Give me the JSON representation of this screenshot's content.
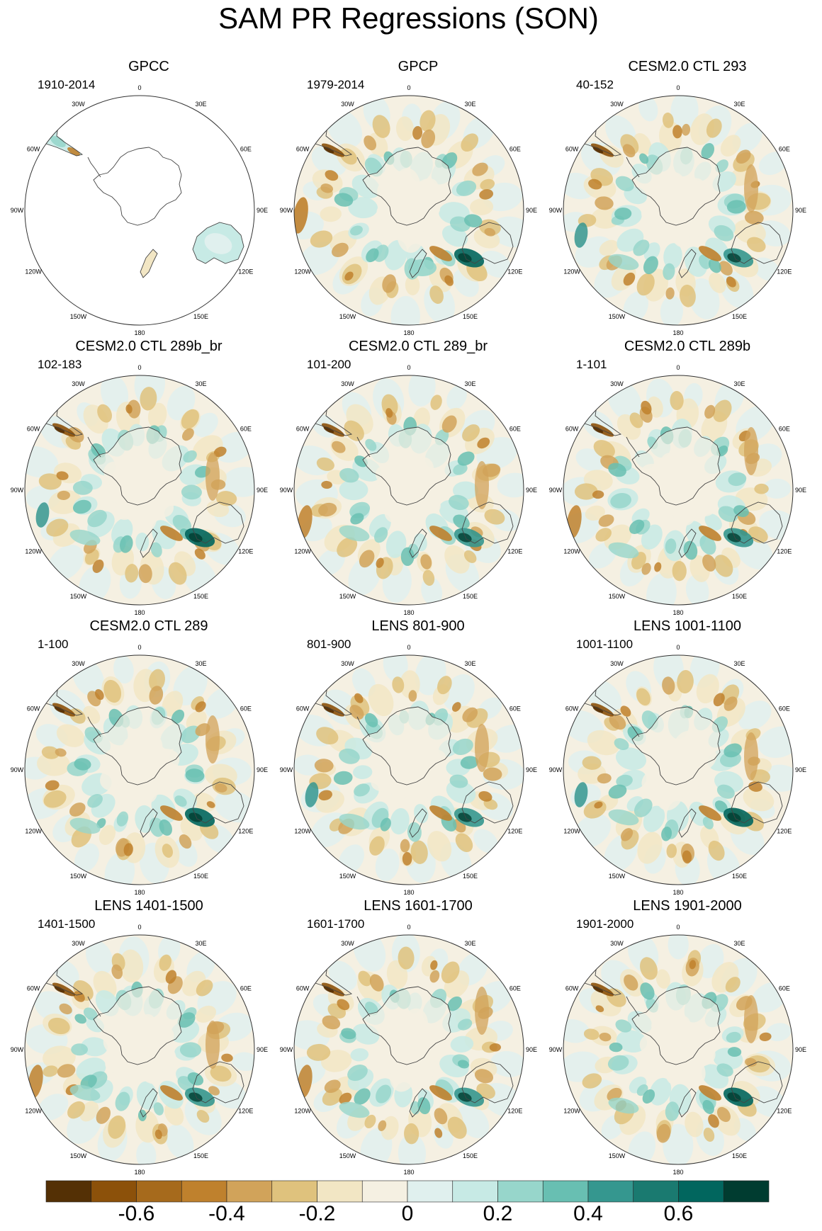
{
  "title": "SAM PR Regressions (SON)",
  "lon_labels": [
    "0",
    "30E",
    "60E",
    "90E",
    "120E",
    "150E",
    "180",
    "150W",
    "120W",
    "90W",
    "60W",
    "30W"
  ],
  "panels": [
    {
      "title": "GPCC",
      "period": "1910-2014",
      "style": "land-only"
    },
    {
      "title": "GPCP",
      "period": "1979-2014",
      "style": "obs"
    },
    {
      "title": "CESM2.0 CTL 293",
      "period": "40-152",
      "style": "model"
    },
    {
      "title": "CESM2.0 CTL 289b_br",
      "period": "102-183",
      "style": "model"
    },
    {
      "title": "CESM2.0 CTL 289_br",
      "period": "101-200",
      "style": "model"
    },
    {
      "title": "CESM2.0 CTL 289b",
      "period": "1-101",
      "style": "model"
    },
    {
      "title": "CESM2.0 CTL 289",
      "period": "1-100",
      "style": "model"
    },
    {
      "title": "LENS 801-900",
      "period": "801-900",
      "style": "model"
    },
    {
      "title": "LENS 1001-1100",
      "period": "1001-1100",
      "style": "model"
    },
    {
      "title": "LENS 1401-1500",
      "period": "1401-1500",
      "style": "model"
    },
    {
      "title": "LENS 1601-1700",
      "period": "1601-1700",
      "style": "model"
    },
    {
      "title": "LENS 1901-2000",
      "period": "1901-2000",
      "style": "model"
    }
  ],
  "colorbar": {
    "colors": [
      "#543005",
      "#8c510a",
      "#a66a1c",
      "#bf812d",
      "#d1a35a",
      "#dfc27d",
      "#f2e6c4",
      "#f5f0e2",
      "#e0f0ee",
      "#c7eae5",
      "#97d6cb",
      "#68bfb2",
      "#35978f",
      "#1a7a70",
      "#01665e",
      "#003c30"
    ],
    "tick_labels": [
      "-0.6",
      "-0.4",
      "-0.2",
      "0",
      "0.2",
      "0.4",
      "0.6"
    ]
  }
}
